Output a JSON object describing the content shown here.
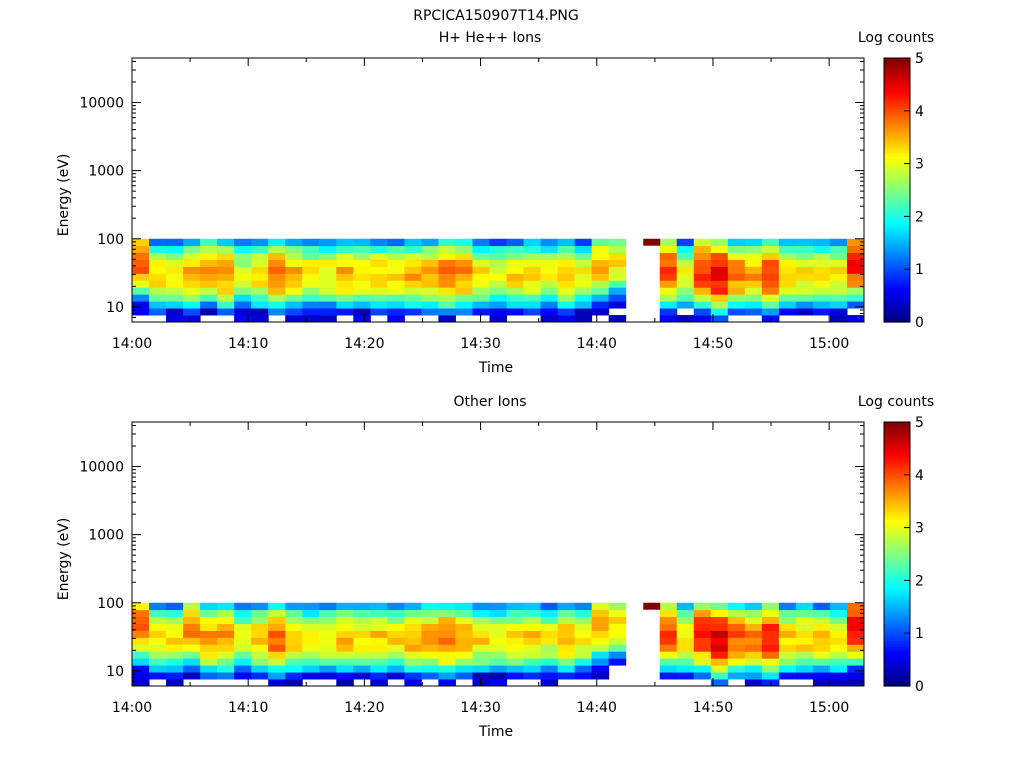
{
  "main_title": "RPCICA150907T14.PNG",
  "colors": {
    "colormap": [
      "#00007f",
      "#0000ff",
      "#0080ff",
      "#00ffff",
      "#80ff80",
      "#ffff00",
      "#ff8000",
      "#ff0000",
      "#7f0000"
    ]
  },
  "chart_data": [
    {
      "type": "heatmap",
      "title": "H+ He++ Ions",
      "xlabel": "Time",
      "ylabel": "Energy (eV)",
      "yscale": "log",
      "ylim": [
        6,
        45000
      ],
      "xlim": [
        "14:00",
        "15:03"
      ],
      "xticks": [
        "14:00",
        "14:10",
        "14:20",
        "14:30",
        "14:40",
        "14:50",
        "15:00"
      ],
      "yticks": [
        "10",
        "100",
        "1000",
        "10000"
      ],
      "colorbar": {
        "label": "Log counts",
        "range": [
          0,
          5
        ],
        "ticks": [
          "0",
          "1",
          "2",
          "3",
          "4",
          "5"
        ]
      },
      "data_energy_range_eV": [
        6,
        100
      ],
      "data_gap": [
        "14:43",
        "14:44"
      ],
      "peak_energy_eV": [
        45,
        28,
        30,
        30,
        35,
        30,
        30,
        30,
        30,
        30,
        30,
        30,
        30,
        30,
        30,
        30,
        30,
        30,
        30,
        30,
        30,
        30,
        30,
        30,
        30,
        30,
        30,
        40,
        45,
        50,
        40,
        35,
        30,
        35,
        30,
        30,
        30,
        30,
        30,
        30,
        30,
        30,
        45
      ],
      "peak_log_counts": [
        3.9,
        3.3,
        3.2,
        3.5,
        3.6,
        3.7,
        3.0,
        3.4,
        3.9,
        3.5,
        3.2,
        3.2,
        3.5,
        3.3,
        3.4,
        3.3,
        3.5,
        3.6,
        3.9,
        3.7,
        3.2,
        3.1,
        3.3,
        3.4,
        3.1,
        3.5,
        3.1,
        3.5,
        3.2,
        3.3,
        3.0,
        4.0,
        3.1,
        4.2,
        4.5,
        3.8,
        3.6,
        4.2,
        3.3,
        3.3,
        3.3,
        3.2,
        4.4
      ]
    },
    {
      "type": "heatmap",
      "title": "Other Ions",
      "xlabel": "Time",
      "ylabel": "Energy (eV)",
      "yscale": "log",
      "ylim": [
        6,
        45000
      ],
      "xlim": [
        "14:00",
        "15:03"
      ],
      "xticks": [
        "14:00",
        "14:10",
        "14:20",
        "14:30",
        "14:40",
        "14:50",
        "15:00"
      ],
      "yticks": [
        "10",
        "100",
        "1000",
        "10000"
      ],
      "colorbar": {
        "label": "Log counts",
        "range": [
          0,
          5
        ],
        "ticks": [
          "0",
          "1",
          "2",
          "3",
          "4",
          "5"
        ]
      },
      "data_energy_range_eV": [
        6,
        100
      ],
      "data_gap": [
        "14:43",
        "14:44"
      ],
      "peak_energy_eV": [
        45,
        30,
        30,
        40,
        30,
        30,
        30,
        30,
        30,
        30,
        30,
        30,
        30,
        30,
        30,
        30,
        30,
        30,
        30,
        30,
        30,
        30,
        30,
        30,
        30,
        30,
        30,
        45,
        50,
        50,
        40,
        35,
        30,
        35,
        30,
        30,
        30,
        30,
        30,
        30,
        30,
        30,
        45
      ],
      "peak_log_counts": [
        3.9,
        3.3,
        3.3,
        3.7,
        3.6,
        3.7,
        3.0,
        3.4,
        3.9,
        3.5,
        3.2,
        3.2,
        3.5,
        3.3,
        3.4,
        3.3,
        3.6,
        3.7,
        3.9,
        3.7,
        3.3,
        3.1,
        3.3,
        3.4,
        3.1,
        3.5,
        3.1,
        3.5,
        3.3,
        3.4,
        3.1,
        4.0,
        3.3,
        4.3,
        4.6,
        3.9,
        3.8,
        4.3,
        3.4,
        3.4,
        3.3,
        3.3,
        4.4
      ]
    }
  ]
}
